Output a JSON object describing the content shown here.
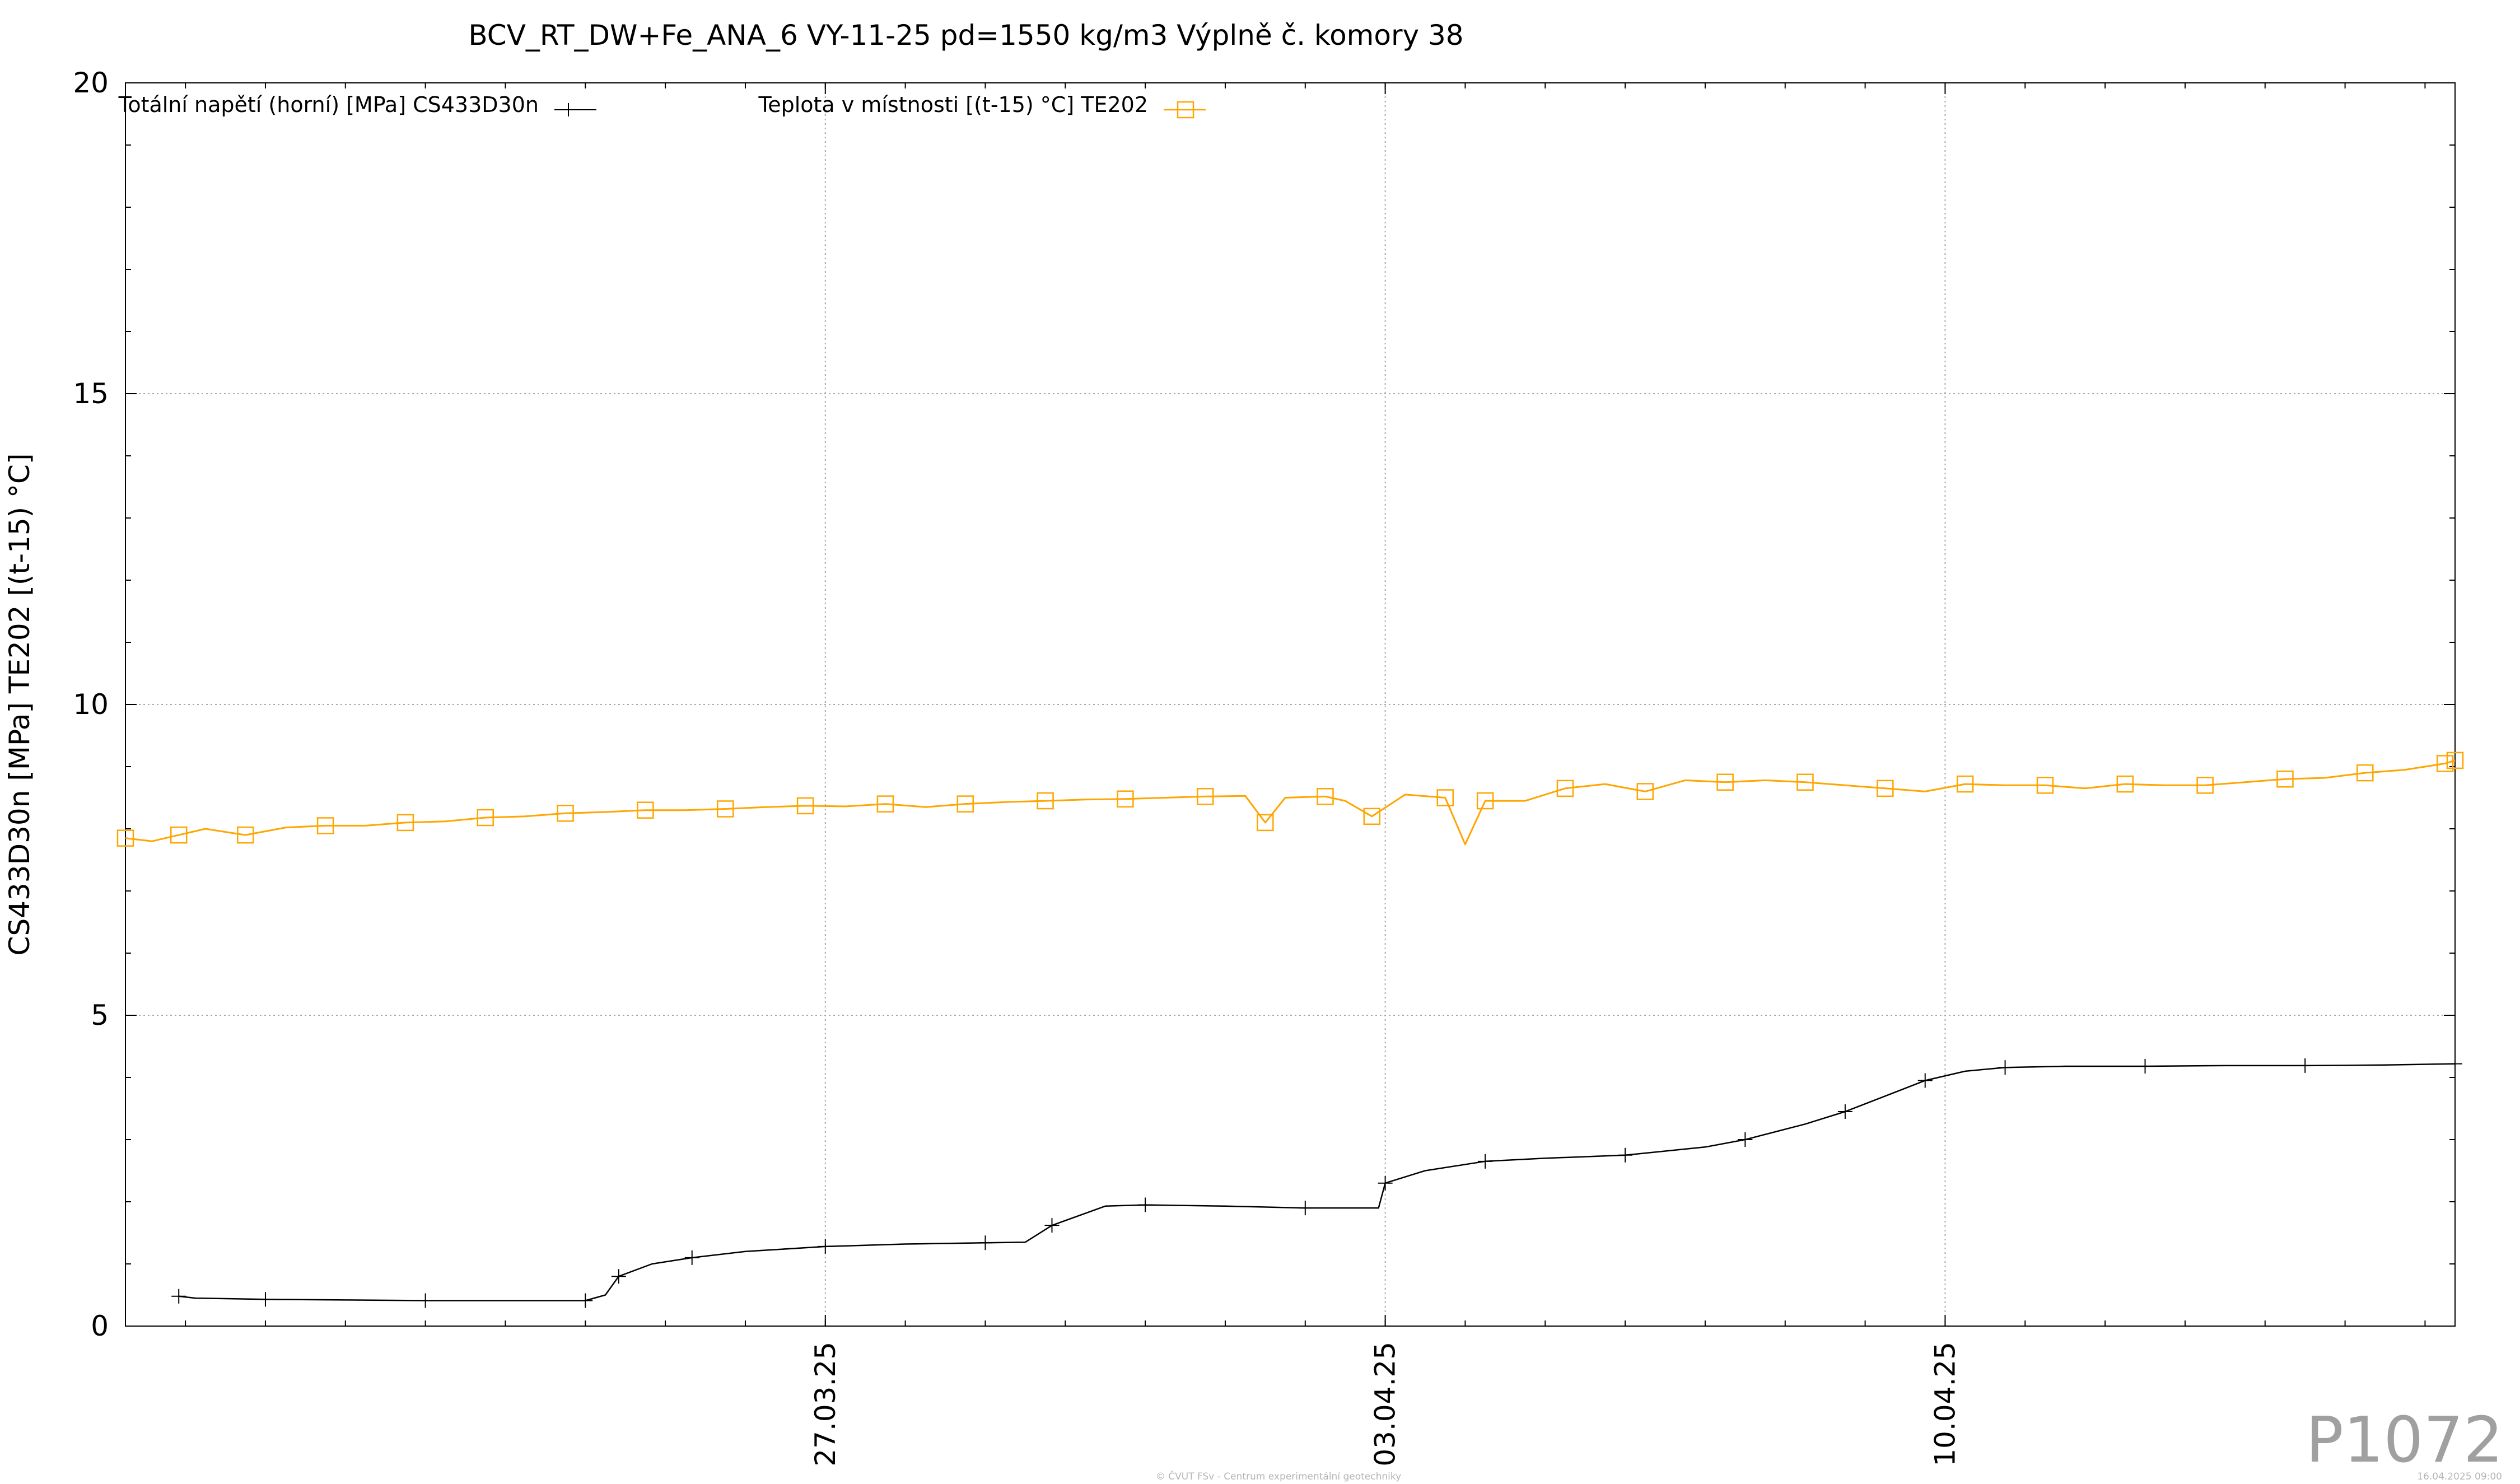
{
  "chart_data": {
    "type": "line",
    "title": "BCV_RT_DW+Fe_ANA_6 VY-11-25 pd=1550 kg/m3 Výplně č. komory 38",
    "ylabel": "CS433D30n [MPa] TE202 [(t-15) °C]",
    "xlabel": "",
    "ylim": [
      0,
      20
    ],
    "yticks": [
      "0",
      "5",
      "10",
      "15",
      "20"
    ],
    "x_range": [
      "2025-03-18 06:00",
      "2025-04-16 09:00"
    ],
    "xticks": [
      {
        "date": "2025-03-27",
        "label": "27.03.25"
      },
      {
        "date": "2025-04-03",
        "label": "03.04.25"
      },
      {
        "date": "2025-04-10",
        "label": "10.04.25"
      }
    ],
    "grid": true,
    "legend_position": "top",
    "series": [
      {
        "name": "Totální napětí (horní) [MPa] CS433D30n",
        "color": "#000000",
        "marker": "plus",
        "points": [
          [
            "2025-03-18 22:00",
            0.48
          ],
          [
            "2025-03-19 03:00",
            0.45
          ],
          [
            "2025-03-20 00:00",
            0.43
          ],
          [
            "2025-03-21 00:00",
            0.42
          ],
          [
            "2025-03-22 00:00",
            0.41
          ],
          [
            "2025-03-23 00:00",
            0.41
          ],
          [
            "2025-03-24 00:00",
            0.41
          ],
          [
            "2025-03-24 06:00",
            0.5
          ],
          [
            "2025-03-24 10:00",
            0.8
          ],
          [
            "2025-03-24 20:00",
            1.0
          ],
          [
            "2025-03-25 08:00",
            1.1
          ],
          [
            "2025-03-26 00:00",
            1.2
          ],
          [
            "2025-03-27 00:00",
            1.28
          ],
          [
            "2025-03-28 00:00",
            1.32
          ],
          [
            "2025-03-29 00:00",
            1.34
          ],
          [
            "2025-03-29 12:00",
            1.35
          ],
          [
            "2025-03-29 20:00",
            1.62
          ],
          [
            "2025-03-30 12:00",
            1.93
          ],
          [
            "2025-03-31 00:00",
            1.95
          ],
          [
            "2025-04-01 00:00",
            1.93
          ],
          [
            "2025-04-02 00:00",
            1.9
          ],
          [
            "2025-04-02 22:00",
            1.9
          ],
          [
            "2025-04-03 00:00",
            2.3
          ],
          [
            "2025-04-03 12:00",
            2.5
          ],
          [
            "2025-04-04 06:00",
            2.65
          ],
          [
            "2025-04-05 00:00",
            2.7
          ],
          [
            "2025-04-06 00:00",
            2.75
          ],
          [
            "2025-04-07 00:00",
            2.88
          ],
          [
            "2025-04-07 12:00",
            3.0
          ],
          [
            "2025-04-08 06:00",
            3.25
          ],
          [
            "2025-04-08 18:00",
            3.45
          ],
          [
            "2025-04-09 06:00",
            3.7
          ],
          [
            "2025-04-09 18:00",
            3.95
          ],
          [
            "2025-04-10 06:00",
            4.1
          ],
          [
            "2025-04-10 18:00",
            4.16
          ],
          [
            "2025-04-11 12:00",
            4.18
          ],
          [
            "2025-04-12 12:00",
            4.18
          ],
          [
            "2025-04-13 12:00",
            4.19
          ],
          [
            "2025-04-14 12:00",
            4.19
          ],
          [
            "2025-04-15 12:00",
            4.2
          ],
          [
            "2025-04-16 09:00",
            4.22
          ]
        ]
      },
      {
        "name": "Teplota v místnosti [(t-15) °C] TE202",
        "color": "#ffa500",
        "marker": "square",
        "points": [
          [
            "2025-03-18 06:00",
            7.85
          ],
          [
            "2025-03-18 14:00",
            7.8
          ],
          [
            "2025-03-18 22:00",
            7.9
          ],
          [
            "2025-03-19 06:00",
            8.0
          ],
          [
            "2025-03-19 18:00",
            7.9
          ],
          [
            "2025-03-20 06:00",
            8.02
          ],
          [
            "2025-03-20 18:00",
            8.05
          ],
          [
            "2025-03-21 06:00",
            8.05
          ],
          [
            "2025-03-21 18:00",
            8.1
          ],
          [
            "2025-03-22 06:00",
            8.12
          ],
          [
            "2025-03-22 18:00",
            8.18
          ],
          [
            "2025-03-23 06:00",
            8.2
          ],
          [
            "2025-03-23 18:00",
            8.25
          ],
          [
            "2025-03-24 06:00",
            8.27
          ],
          [
            "2025-03-24 18:00",
            8.3
          ],
          [
            "2025-03-25 06:00",
            8.3
          ],
          [
            "2025-03-25 18:00",
            8.32
          ],
          [
            "2025-03-26 06:00",
            8.35
          ],
          [
            "2025-03-26 18:00",
            8.37
          ],
          [
            "2025-03-27 06:00",
            8.36
          ],
          [
            "2025-03-27 18:00",
            8.4
          ],
          [
            "2025-03-28 06:00",
            8.35
          ],
          [
            "2025-03-28 18:00",
            8.4
          ],
          [
            "2025-03-29 06:00",
            8.43
          ],
          [
            "2025-03-29 18:00",
            8.45
          ],
          [
            "2025-03-30 06:00",
            8.47
          ],
          [
            "2025-03-30 18:00",
            8.48
          ],
          [
            "2025-03-31 06:00",
            8.5
          ],
          [
            "2025-03-31 18:00",
            8.52
          ],
          [
            "2025-04-01 06:00",
            8.53
          ],
          [
            "2025-04-01 12:00",
            8.1
          ],
          [
            "2025-04-01 18:00",
            8.5
          ],
          [
            "2025-04-02 06:00",
            8.52
          ],
          [
            "2025-04-02 12:00",
            8.45
          ],
          [
            "2025-04-02 20:00",
            8.2
          ],
          [
            "2025-04-03 06:00",
            8.55
          ],
          [
            "2025-04-03 18:00",
            8.5
          ],
          [
            "2025-04-04 00:00",
            7.75
          ],
          [
            "2025-04-04 06:00",
            8.45
          ],
          [
            "2025-04-04 18:00",
            8.45
          ],
          [
            "2025-04-05 06:00",
            8.65
          ],
          [
            "2025-04-05 18:00",
            8.72
          ],
          [
            "2025-04-06 06:00",
            8.6
          ],
          [
            "2025-04-06 18:00",
            8.78
          ],
          [
            "2025-04-07 06:00",
            8.75
          ],
          [
            "2025-04-07 18:00",
            8.78
          ],
          [
            "2025-04-08 06:00",
            8.75
          ],
          [
            "2025-04-08 18:00",
            8.7
          ],
          [
            "2025-04-09 06:00",
            8.65
          ],
          [
            "2025-04-09 18:00",
            8.6
          ],
          [
            "2025-04-10 06:00",
            8.72
          ],
          [
            "2025-04-10 18:00",
            8.7
          ],
          [
            "2025-04-11 06:00",
            8.7
          ],
          [
            "2025-04-11 18:00",
            8.65
          ],
          [
            "2025-04-12 06:00",
            8.72
          ],
          [
            "2025-04-12 18:00",
            8.7
          ],
          [
            "2025-04-13 06:00",
            8.7
          ],
          [
            "2025-04-13 18:00",
            8.75
          ],
          [
            "2025-04-14 06:00",
            8.8
          ],
          [
            "2025-04-14 18:00",
            8.82
          ],
          [
            "2025-04-15 06:00",
            8.9
          ],
          [
            "2025-04-15 18:00",
            8.95
          ],
          [
            "2025-04-16 06:00",
            9.05
          ],
          [
            "2025-04-16 09:00",
            9.1
          ]
        ]
      }
    ]
  },
  "watermark": "P1072",
  "footer": {
    "center": "© ČVUT FSv - Centrum experimentální geotechniky",
    "right": "16.04.2025 09:00"
  }
}
